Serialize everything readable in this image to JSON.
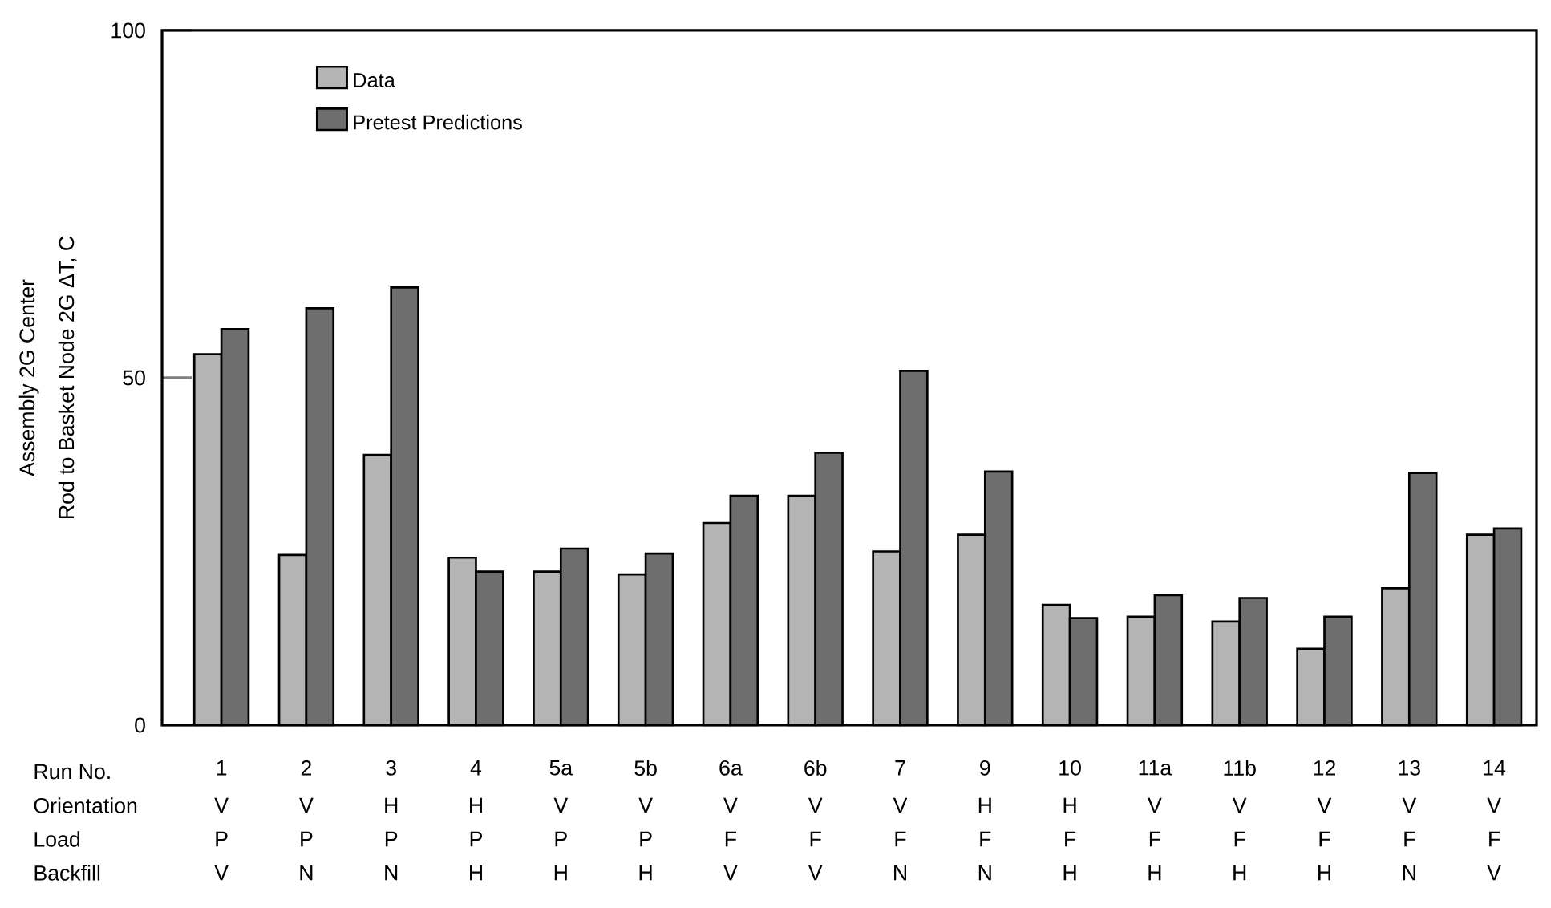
{
  "chart_data": {
    "type": "bar",
    "categories": [
      "1",
      "2",
      "3",
      "4",
      "5a",
      "5b",
      "6a",
      "6b",
      "7",
      "9",
      "10",
      "11a",
      "11b",
      "12",
      "13",
      "14"
    ],
    "series": [
      {
        "name": "Data",
        "color": "#b4b4b4",
        "values": [
          53.4,
          24.5,
          38.9,
          24.1,
          22.1,
          21.7,
          29.1,
          33.0,
          25.0,
          27.4,
          17.3,
          15.6,
          14.9,
          11.0,
          19.7,
          27.4
        ]
      },
      {
        "name": "Pretest Predictions",
        "color": "#6e6e6e",
        "values": [
          57.0,
          60.0,
          63.0,
          22.1,
          25.4,
          24.7,
          33.0,
          39.2,
          51.0,
          36.5,
          15.4,
          18.7,
          18.3,
          15.6,
          36.3,
          28.3
        ]
      }
    ],
    "ylabel": "Rod to Basket Node 2G ΔT, C",
    "xlabel": "Run No.",
    "ylim": [
      0,
      100
    ],
    "yticks": [
      0,
      50,
      100
    ],
    "legend": "top left",
    "annotations": [
      "Assembly 2G Center",
      "Orientation",
      "V",
      "V",
      "H",
      "H",
      "V",
      "V",
      "V",
      "V",
      "V",
      "H",
      "H",
      "V",
      "V",
      "V",
      "V",
      "V",
      "Load",
      "P",
      "P",
      "P",
      "P",
      "P",
      "P",
      "F",
      "F",
      "F",
      "F",
      "F",
      "F",
      "F",
      "F",
      "F",
      "F",
      "Backfill",
      "V",
      "N",
      "N",
      "H",
      "H",
      "H",
      "V",
      "V",
      "N",
      "N",
      "H",
      "H",
      "H",
      "H",
      "N",
      "V"
    ]
  }
}
